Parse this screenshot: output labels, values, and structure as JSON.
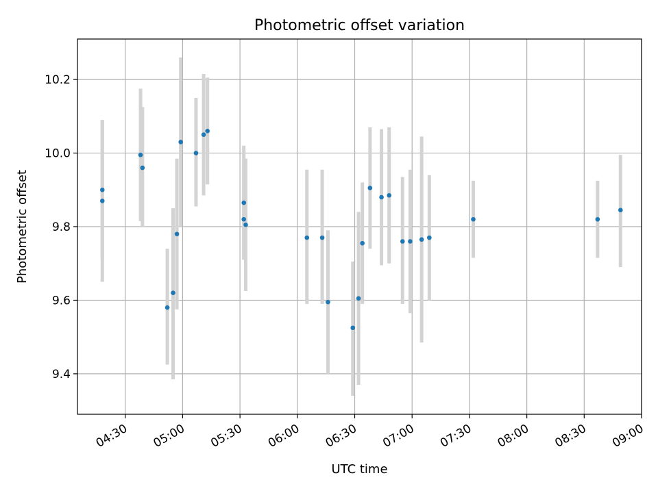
{
  "chart_data": {
    "type": "scatter",
    "title": "Photometric offset variation",
    "xlabel": "UTC time",
    "ylabel": "Photometric offset",
    "x_ticks": [
      "04:30",
      "05:00",
      "05:30",
      "06:00",
      "06:30",
      "07:00",
      "07:30",
      "08:00",
      "08:30",
      "09:00"
    ],
    "y_ticks": [
      "9.4",
      "9.6",
      "9.8",
      "10.0",
      "10.2"
    ],
    "xlim": [
      "04:05",
      "09:00"
    ],
    "ylim": [
      9.29,
      10.31
    ],
    "grid": true,
    "colors": {
      "point": "#1f77b4",
      "errorbar": "#d3d3d3",
      "grid": "#b0b0b0"
    },
    "points": [
      {
        "x": "04:18",
        "y": 9.87,
        "err_low": 9.65,
        "err_high": 10.09
      },
      {
        "x": "04:18",
        "y": 9.9,
        "err_low": 9.71,
        "err_high": 10.09
      },
      {
        "x": "04:38",
        "y": 9.995,
        "err_low": 9.815,
        "err_high": 10.175
      },
      {
        "x": "04:39",
        "y": 9.96,
        "err_low": 9.8,
        "err_high": 10.125
      },
      {
        "x": "04:52",
        "y": 9.58,
        "err_low": 9.425,
        "err_high": 9.74
      },
      {
        "x": "04:55",
        "y": 9.62,
        "err_low": 9.385,
        "err_high": 9.85
      },
      {
        "x": "04:57",
        "y": 9.78,
        "err_low": 9.575,
        "err_high": 9.985
      },
      {
        "x": "04:59",
        "y": 10.03,
        "err_low": 9.8,
        "err_high": 10.26
      },
      {
        "x": "05:07",
        "y": 10.0,
        "err_low": 9.855,
        "err_high": 10.15
      },
      {
        "x": "05:11",
        "y": 10.05,
        "err_low": 9.885,
        "err_high": 10.215
      },
      {
        "x": "05:13",
        "y": 10.06,
        "err_low": 9.915,
        "err_high": 10.205
      },
      {
        "x": "05:32",
        "y": 9.865,
        "err_low": 9.71,
        "err_high": 10.02
      },
      {
        "x": "05:32",
        "y": 9.82,
        "err_low": 9.71,
        "err_high": 9.98
      },
      {
        "x": "05:33",
        "y": 9.805,
        "err_low": 9.625,
        "err_high": 9.985
      },
      {
        "x": "06:05",
        "y": 9.77,
        "err_low": 9.59,
        "err_high": 9.955
      },
      {
        "x": "06:13",
        "y": 9.77,
        "err_low": 9.59,
        "err_high": 9.955
      },
      {
        "x": "06:16",
        "y": 9.595,
        "err_low": 9.4,
        "err_high": 9.79
      },
      {
        "x": "06:29",
        "y": 9.525,
        "err_low": 9.34,
        "err_high": 9.705
      },
      {
        "x": "06:32",
        "y": 9.605,
        "err_low": 9.37,
        "err_high": 9.84
      },
      {
        "x": "06:34",
        "y": 9.755,
        "err_low": 9.59,
        "err_high": 9.92
      },
      {
        "x": "06:38",
        "y": 9.905,
        "err_low": 9.74,
        "err_high": 10.07
      },
      {
        "x": "06:44",
        "y": 9.88,
        "err_low": 9.695,
        "err_high": 10.065
      },
      {
        "x": "06:48",
        "y": 9.885,
        "err_low": 9.7,
        "err_high": 10.07
      },
      {
        "x": "06:55",
        "y": 9.76,
        "err_low": 9.59,
        "err_high": 9.935
      },
      {
        "x": "06:59",
        "y": 9.76,
        "err_low": 9.565,
        "err_high": 9.955
      },
      {
        "x": "07:05",
        "y": 9.765,
        "err_low": 9.485,
        "err_high": 10.045
      },
      {
        "x": "07:09",
        "y": 9.77,
        "err_low": 9.6,
        "err_high": 9.94
      },
      {
        "x": "07:32",
        "y": 9.82,
        "err_low": 9.715,
        "err_high": 9.925
      },
      {
        "x": "08:37",
        "y": 9.82,
        "err_low": 9.715,
        "err_high": 9.925
      },
      {
        "x": "08:49",
        "y": 9.845,
        "err_low": 9.69,
        "err_high": 9.995
      }
    ]
  }
}
